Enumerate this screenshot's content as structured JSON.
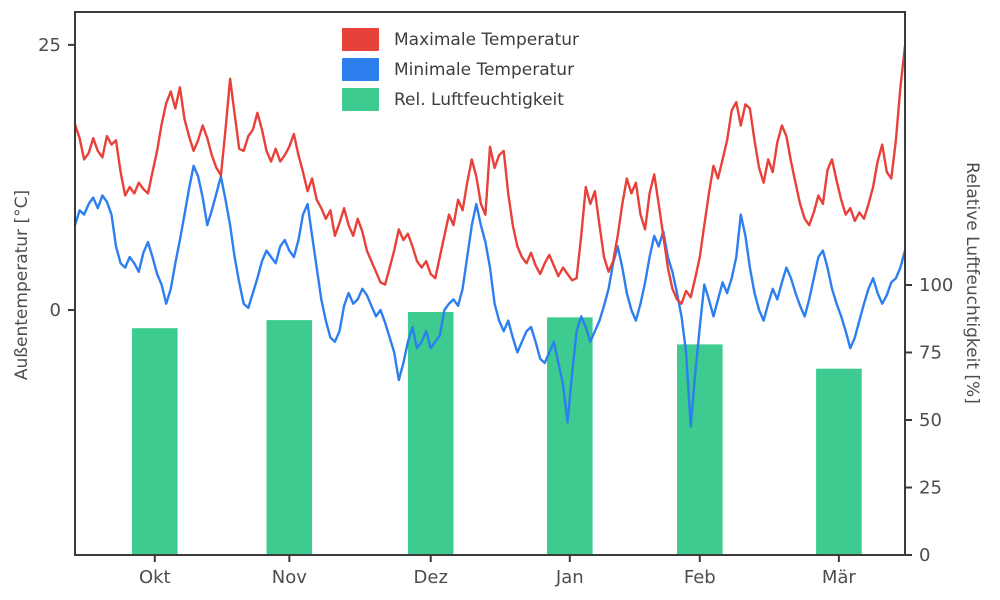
{
  "chart_data": {
    "type": "line+bar",
    "x_unit": "day_index",
    "x_range": [
      0,
      182
    ],
    "x_ticks": {
      "labels": [
        "Okt",
        "Nov",
        "Dez",
        "Jan",
        "Feb",
        "Mär"
      ],
      "positions": [
        17.5,
        47,
        78,
        108.5,
        137,
        167.5
      ]
    },
    "left_axis": {
      "label": "Außentemperatur [°C]",
      "ticks": [
        25,
        0
      ],
      "range": [
        -23.1,
        28.1
      ]
    },
    "right_axis": {
      "label": "Relative Luftfeuchtigkeit [%]",
      "ticks": [
        100,
        75,
        50,
        25,
        0
      ],
      "range": [
        0,
        201.1
      ]
    },
    "grid": false,
    "legend_position": "upper center",
    "colors": {
      "max_temp": "#e8413a",
      "min_temp": "#2d7ff0",
      "humidity": "#3dcb8f",
      "spine": "#3a3a3a",
      "tick_text": "#4d4d4d"
    },
    "series": [
      {
        "name": "Maximale Temperatur",
        "type": "line",
        "axis": "left",
        "color": "#e8413a",
        "values": [
          17.5,
          16.2,
          14.2,
          14.8,
          16.2,
          15.0,
          14.4,
          16.4,
          15.6,
          16.0,
          13.0,
          10.8,
          11.6,
          11.0,
          12.0,
          11.4,
          11.0,
          13.0,
          15.0,
          17.5,
          19.5,
          20.6,
          19.0,
          21.0,
          18.0,
          16.4,
          15.0,
          16.0,
          17.4,
          16.2,
          14.6,
          13.4,
          12.7,
          17.0,
          21.8,
          18.5,
          15.2,
          15.0,
          16.4,
          17.0,
          18.6,
          17.0,
          15.0,
          14.0,
          15.2,
          14.0,
          14.6,
          15.4,
          16.6,
          14.6,
          13.0,
          11.2,
          12.4,
          10.4,
          9.6,
          8.6,
          9.4,
          7.0,
          8.2,
          9.6,
          8.0,
          7.0,
          8.6,
          7.4,
          5.6,
          4.6,
          3.6,
          2.6,
          2.4,
          4.0,
          5.6,
          7.6,
          6.6,
          7.2,
          6.0,
          4.6,
          4.0,
          4.6,
          3.4,
          3.0,
          5.0,
          7.0,
          9.0,
          8.0,
          10.4,
          9.4,
          12.0,
          14.2,
          12.6,
          10.0,
          9.0,
          15.4,
          13.4,
          14.6,
          15.0,
          11.0,
          8.0,
          6.0,
          5.0,
          4.4,
          5.4,
          4.2,
          3.4,
          4.4,
          5.2,
          4.2,
          3.2,
          4.0,
          3.4,
          2.8,
          3.0,
          7.0,
          11.6,
          10.0,
          11.2,
          8.0,
          5.0,
          3.6,
          4.6,
          7.0,
          10.0,
          12.4,
          11.0,
          12.0,
          9.0,
          7.6,
          11.0,
          12.8,
          10.0,
          7.0,
          4.0,
          2.0,
          1.0,
          0.6,
          1.8,
          1.2,
          3.0,
          5.0,
          8.0,
          11.0,
          13.6,
          12.4,
          14.2,
          16.0,
          18.8,
          19.6,
          17.4,
          19.4,
          19.0,
          16.0,
          13.4,
          12.0,
          14.2,
          13.0,
          15.8,
          17.4,
          16.4,
          14.0,
          12.0,
          10.0,
          8.6,
          8.0,
          9.2,
          10.8,
          10.0,
          13.2,
          14.2,
          12.2,
          10.4,
          9.0,
          9.6,
          8.4,
          9.2,
          8.6,
          10.0,
          11.6,
          14.0,
          15.6,
          13.0,
          12.4,
          16.0,
          21.0,
          24.9
        ]
      },
      {
        "name": "Minimale Temperatur",
        "type": "line",
        "axis": "left",
        "color": "#2d7ff0",
        "values": [
          8.0,
          9.4,
          9.0,
          10.0,
          10.6,
          9.6,
          10.8,
          10.2,
          9.0,
          6.0,
          4.4,
          4.0,
          5.0,
          4.4,
          3.6,
          5.4,
          6.4,
          5.0,
          3.4,
          2.4,
          0.6,
          2.0,
          4.4,
          6.6,
          9.0,
          11.4,
          13.6,
          12.6,
          10.6,
          8.0,
          9.4,
          11.0,
          12.6,
          10.4,
          8.0,
          5.0,
          2.6,
          0.6,
          0.2,
          1.6,
          3.0,
          4.6,
          5.6,
          5.0,
          4.4,
          6.0,
          6.6,
          5.6,
          5.0,
          6.6,
          9.0,
          10.0,
          7.0,
          4.0,
          1.0,
          -1.0,
          -2.6,
          -3.0,
          -2.0,
          0.4,
          1.6,
          0.6,
          1.0,
          2.0,
          1.4,
          0.4,
          -0.6,
          0.0,
          -1.2,
          -2.6,
          -4.0,
          -6.6,
          -5.0,
          -3.0,
          -1.6,
          -3.6,
          -3.0,
          -2.0,
          -3.6,
          -3.0,
          -2.4,
          0.0,
          0.6,
          1.0,
          0.4,
          2.0,
          5.0,
          8.0,
          10.0,
          8.0,
          6.4,
          4.0,
          0.6,
          -1.0,
          -2.0,
          -1.0,
          -2.6,
          -4.0,
          -3.0,
          -2.0,
          -1.6,
          -3.0,
          -4.6,
          -5.0,
          -4.0,
          -3.0,
          -5.0,
          -7.0,
          -10.6,
          -6.0,
          -2.0,
          -0.6,
          -1.6,
          -3.0,
          -2.0,
          -1.0,
          0.4,
          2.0,
          4.4,
          6.0,
          4.0,
          1.6,
          0.0,
          -1.0,
          0.6,
          2.6,
          5.0,
          7.0,
          6.0,
          7.4,
          5.0,
          3.6,
          1.6,
          -0.6,
          -4.0,
          -11.0,
          -6.0,
          -1.6,
          2.4,
          1.0,
          -0.6,
          1.0,
          2.6,
          1.6,
          3.0,
          5.0,
          9.0,
          7.0,
          4.0,
          1.6,
          0.0,
          -1.0,
          0.6,
          2.0,
          1.0,
          2.6,
          4.0,
          3.0,
          1.6,
          0.4,
          -0.6,
          1.0,
          3.0,
          5.0,
          5.6,
          4.0,
          2.0,
          0.6,
          -0.6,
          -2.0,
          -3.6,
          -2.6,
          -1.0,
          0.6,
          2.0,
          3.0,
          1.6,
          0.6,
          1.4,
          2.6,
          3.0,
          4.0,
          5.6
        ]
      },
      {
        "name": "Rel. Luftfeuchtigkeit",
        "type": "bar",
        "axis": "right",
        "color": "#3dcb8f",
        "categories": [
          "Okt",
          "Nov",
          "Dez",
          "Jan",
          "Feb",
          "Mär"
        ],
        "positions": [
          17.5,
          47,
          78,
          108.5,
          137,
          167.5
        ],
        "bar_width_days": 10,
        "values": [
          84,
          87,
          90,
          88,
          78,
          69
        ]
      }
    ]
  }
}
